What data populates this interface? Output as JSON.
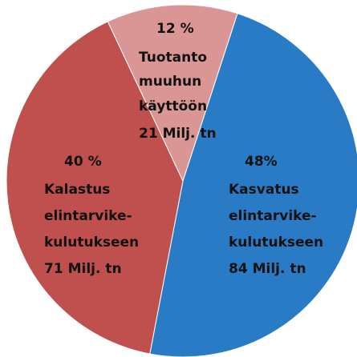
{
  "chart_data": {
    "type": "pie",
    "categories": [
      [
        "Kasvatus",
        "elintarvike-",
        "kulutukseen",
        "84 Milj. tn"
      ],
      [
        "Kalastus",
        "elintarvike-",
        "kulutukseen",
        "71 Milj. tn"
      ],
      [
        "Tuotanto",
        "muuhun",
        "käyttöön",
        "21 Milj. tn"
      ]
    ],
    "values": [
      48,
      40,
      12
    ],
    "value_labels": [
      "48%",
      "40 %",
      "12 %"
    ],
    "colors": [
      "#2a7bc6",
      "#c0504d",
      "#d99694"
    ]
  }
}
